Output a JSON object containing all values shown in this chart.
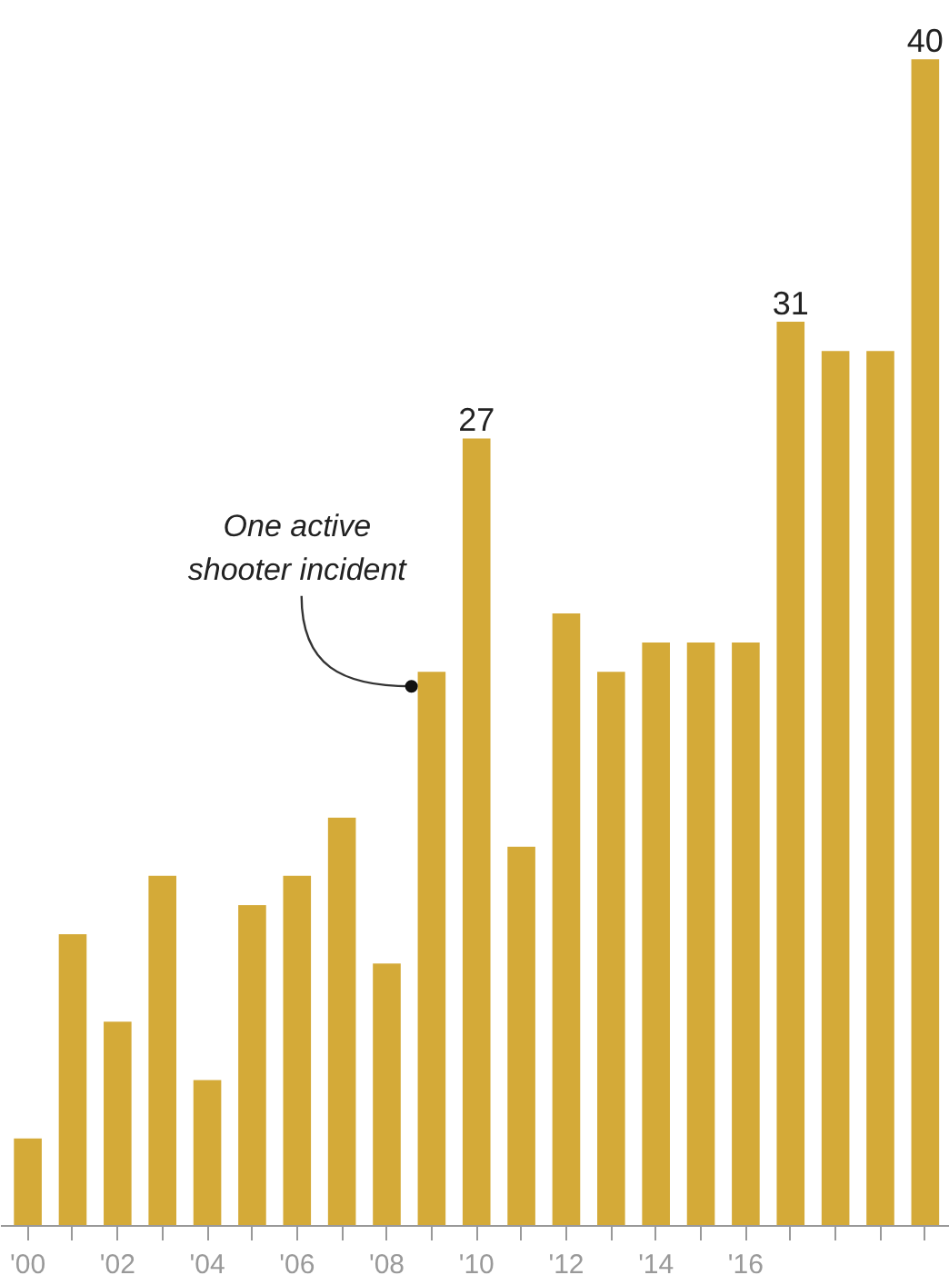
{
  "chart_data": {
    "type": "bar",
    "categories": [
      "'00",
      null,
      "'02",
      null,
      "'04",
      null,
      "'06",
      null,
      "'08",
      null,
      "'10",
      null,
      "'12",
      null,
      "'14",
      null,
      "'16",
      null,
      null,
      null,
      null
    ],
    "values": [
      3,
      10,
      7,
      12,
      5,
      11,
      12,
      14,
      9,
      19,
      27,
      13,
      21,
      19,
      20,
      20,
      20,
      31,
      30,
      30,
      40
    ],
    "value_labels": [
      null,
      null,
      null,
      null,
      null,
      null,
      null,
      null,
      null,
      null,
      "27",
      null,
      null,
      null,
      null,
      null,
      null,
      "31",
      null,
      null,
      "40"
    ],
    "color": "#d4aa38",
    "annotations": [
      "One active shooter incident"
    ]
  }
}
